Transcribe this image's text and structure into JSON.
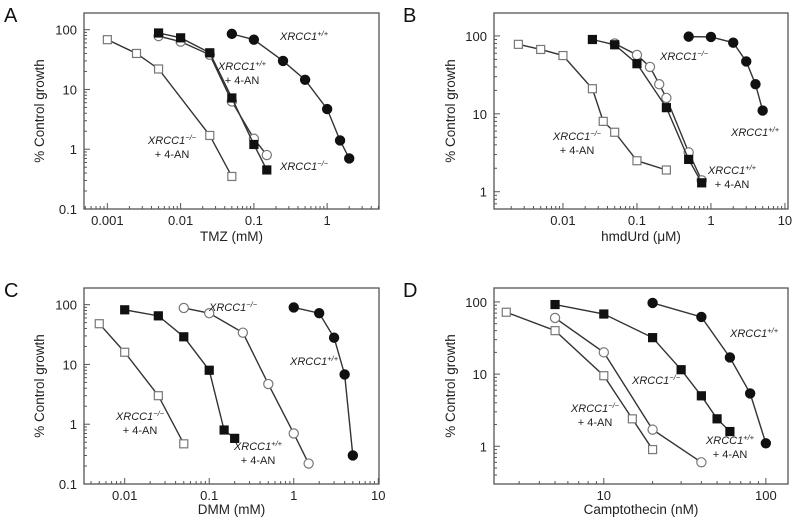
{
  "chart_data": [
    {
      "type": "line",
      "panel": "A",
      "xlabel": "TMZ (mM)",
      "ylabel": "% Control growth",
      "xscale": "log",
      "yscale": "log",
      "xlim": [
        0.00048,
        5.1
      ],
      "ylim": [
        0.1,
        190
      ],
      "xticks": [
        {
          "v": 0.001,
          "label": "0.001"
        },
        {
          "v": 0.01,
          "label": "0.01"
        },
        {
          "v": 0.1,
          "label": "0.1"
        },
        {
          "v": 1,
          "label": "1"
        }
      ],
      "yticks": [
        {
          "v": 0.1,
          "label": "0.1"
        },
        {
          "v": 1,
          "label": "1"
        },
        {
          "v": 10,
          "label": "10"
        },
        {
          "v": 100,
          "label": "100"
        }
      ],
      "series": [
        {
          "name": "XRCC1+/+",
          "marker": "filled-circle",
          "x": [
            0.05,
            0.1,
            0.25,
            0.5,
            1,
            1.5,
            2
          ],
          "y": [
            85,
            68,
            30,
            14.5,
            4.7,
            1.4,
            0.7
          ]
        },
        {
          "name": "XRCC1-/-",
          "marker": "open-circle",
          "x": [
            0.005,
            0.01,
            0.025,
            0.05,
            0.1,
            0.15
          ],
          "y": [
            78,
            63,
            38,
            6.3,
            1.5,
            0.8
          ]
        },
        {
          "name": "XRCC1+/+ + 4-AN",
          "marker": "filled-square",
          "x": [
            0.005,
            0.01,
            0.025,
            0.05,
            0.1,
            0.15
          ],
          "y": [
            88,
            73,
            41,
            7.2,
            1.2,
            0.45
          ]
        },
        {
          "name": "XRCC1-/- + 4-AN",
          "marker": "open-square",
          "x": [
            0.001,
            0.0025,
            0.005,
            0.025,
            0.05
          ],
          "y": [
            68,
            40,
            22,
            1.7,
            0.35
          ]
        }
      ],
      "annotations": [
        {
          "gene": "XRCC1",
          "sup": "+/+",
          "line2": ""
        },
        {
          "gene": "XRCC1",
          "sup": "+/+",
          "line2": "+ 4-AN"
        },
        {
          "gene": "XRCC1",
          "sup": "−/−",
          "line2": "+ 4-AN"
        },
        {
          "gene": "XRCC1",
          "sup": "−/−",
          "line2": ""
        }
      ]
    },
    {
      "type": "line",
      "panel": "B",
      "xlabel": "hmdUrd (μM)",
      "ylabel": "% Control growth",
      "xscale": "log",
      "yscale": "log",
      "xlim": [
        0.00117,
        11
      ],
      "ylim": [
        0.6,
        197
      ],
      "xticks": [
        {
          "v": 0.01,
          "label": "0.01"
        },
        {
          "v": 0.1,
          "label": "0.1"
        },
        {
          "v": 1,
          "label": "1"
        },
        {
          "v": 10,
          "label": "10"
        }
      ],
      "yticks": [
        {
          "v": 1,
          "label": "1"
        },
        {
          "v": 10,
          "label": "10"
        },
        {
          "v": 100,
          "label": "100"
        }
      ],
      "series": [
        {
          "name": "XRCC1+/+",
          "marker": "filled-circle",
          "x": [
            0.5,
            1,
            2,
            3,
            4,
            5
          ],
          "y": [
            98,
            97,
            82,
            47,
            24,
            11
          ]
        },
        {
          "name": "XRCC1-/-",
          "marker": "open-circle",
          "x": [
            0.05,
            0.1,
            0.15,
            0.2,
            0.25,
            0.5,
            0.75
          ],
          "y": [
            80,
            57,
            40,
            24,
            16,
            3.2,
            1.4
          ]
        },
        {
          "name": "XRCC1+/+ + 4-AN",
          "marker": "filled-square",
          "x": [
            0.025,
            0.05,
            0.1,
            0.25,
            0.5,
            0.75
          ],
          "y": [
            90,
            77,
            44,
            12,
            2.6,
            1.3
          ]
        },
        {
          "name": "XRCC1-/- + 4-AN",
          "marker": "open-square",
          "x": [
            0.0025,
            0.005,
            0.01,
            0.025,
            0.035,
            0.05,
            0.1,
            0.25
          ],
          "y": [
            78,
            67,
            56,
            21,
            8,
            5.8,
            2.5,
            1.9
          ]
        }
      ],
      "annotations": [
        {
          "gene": "XRCC1",
          "sup": "−/−",
          "line2": ""
        },
        {
          "gene": "XRCC1",
          "sup": "+/+",
          "line2": ""
        },
        {
          "gene": "XRCC1",
          "sup": "−/−",
          "line2": "+ 4-AN"
        },
        {
          "gene": "XRCC1",
          "sup": "+/+",
          "line2": "+ 4-AN"
        }
      ]
    },
    {
      "type": "line",
      "panel": "C",
      "xlabel": "DMM (mM)",
      "ylabel": "% Control growth",
      "xscale": "log",
      "yscale": "log",
      "xlim": [
        0.0033,
        10.2
      ],
      "ylim": [
        0.1,
        190
      ],
      "xticks": [
        {
          "v": 0.01,
          "label": "0.01"
        },
        {
          "v": 0.1,
          "label": "0.1"
        },
        {
          "v": 1,
          "label": "1"
        },
        {
          "v": 10,
          "label": "10"
        }
      ],
      "yticks": [
        {
          "v": 0.1,
          "label": "0.1"
        },
        {
          "v": 1,
          "label": "1"
        },
        {
          "v": 10,
          "label": "10"
        },
        {
          "v": 100,
          "label": "100"
        }
      ],
      "series": [
        {
          "name": "XRCC1+/+",
          "marker": "filled-circle",
          "x": [
            1,
            2,
            3,
            4,
            5
          ],
          "y": [
            90,
            72,
            28,
            6.8,
            0.3
          ]
        },
        {
          "name": "XRCC1-/-",
          "marker": "open-circle",
          "x": [
            0.05,
            0.1,
            0.25,
            0.5,
            1,
            1.5
          ],
          "y": [
            88,
            72,
            34,
            4.7,
            0.7,
            0.22
          ]
        },
        {
          "name": "XRCC1+/+ + 4-AN",
          "marker": "filled-square",
          "x": [
            0.01,
            0.025,
            0.05,
            0.1,
            0.15,
            0.2
          ],
          "y": [
            82,
            65,
            29,
            8,
            0.8,
            0.58
          ]
        },
        {
          "name": "XRCC1-/- + 4-AN",
          "marker": "open-square",
          "x": [
            0.005,
            0.01,
            0.025,
            0.05
          ],
          "y": [
            48,
            16,
            3.0,
            0.47
          ]
        }
      ],
      "annotations": [
        {
          "gene": "XRCC1",
          "sup": "−/−",
          "line2": ""
        },
        {
          "gene": "XRCC1",
          "sup": "+/+",
          "line2": ""
        },
        {
          "gene": "XRCC1",
          "sup": "−/−",
          "line2": "+ 4-AN"
        },
        {
          "gene": "XRCC1",
          "sup": "+/+",
          "line2": "+ 4-AN"
        }
      ]
    },
    {
      "type": "line",
      "panel": "D",
      "xlabel": "Camptothecin (nM)",
      "ylabel": "% Control growth",
      "xscale": "log",
      "yscale": "log",
      "xlim": [
        2.1,
        137
      ],
      "ylim": [
        0.3,
        156
      ],
      "xticks": [
        {
          "v": 10,
          "label": "10"
        },
        {
          "v": 100,
          "label": "100"
        }
      ],
      "yticks": [
        {
          "v": 1,
          "label": "1"
        },
        {
          "v": 10,
          "label": "10"
        },
        {
          "v": 100,
          "label": "100"
        }
      ],
      "series": [
        {
          "name": "XRCC1+/+",
          "marker": "filled-circle",
          "x": [
            20,
            40,
            60,
            80,
            100
          ],
          "y": [
            97,
            62,
            17,
            5.4,
            1.1
          ]
        },
        {
          "name": "XRCC1-/-",
          "marker": "open-circle",
          "x": [
            5,
            10,
            20,
            40
          ],
          "y": [
            60,
            20,
            1.7,
            0.6
          ]
        },
        {
          "name": "XRCC1+/+ + 4-AN",
          "marker": "filled-square",
          "x": [
            5,
            10,
            20,
            30,
            40,
            50,
            60
          ],
          "y": [
            92,
            68,
            32,
            11.5,
            5.0,
            2.4,
            1.6
          ]
        },
        {
          "name": "XRCC1-/- + 4-AN",
          "marker": "open-square",
          "x": [
            2.5,
            5,
            10,
            15,
            20
          ],
          "y": [
            72,
            40,
            9.5,
            2.4,
            0.9
          ]
        }
      ],
      "annotations": [
        {
          "gene": "XRCC1",
          "sup": "+/+",
          "line2": ""
        },
        {
          "gene": "XRCC1",
          "sup": "−/−",
          "line2": ""
        },
        {
          "gene": "XRCC1",
          "sup": "−/−",
          "line2": "+ 4-AN"
        },
        {
          "gene": "XRCC1",
          "sup": "+/+",
          "line2": "+ 4-AN"
        }
      ]
    }
  ]
}
